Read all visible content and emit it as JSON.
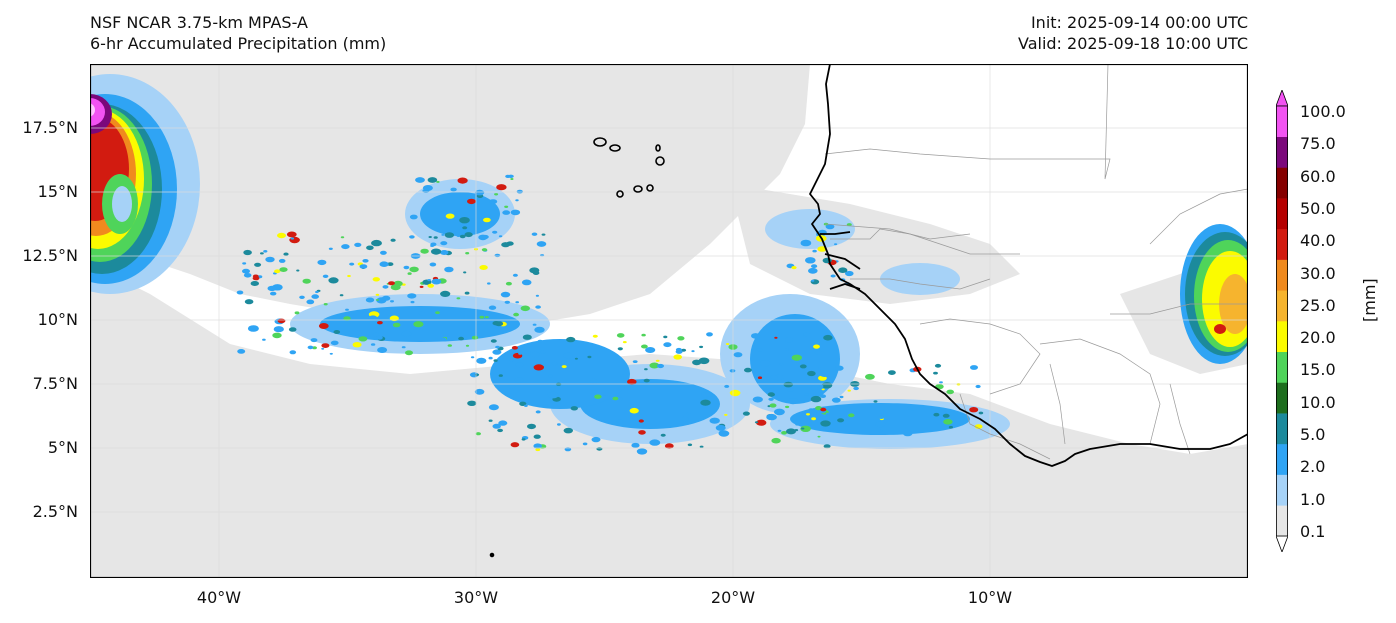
{
  "header": {
    "model": "NSF NCAR 3.75-km MPAS-A",
    "field": "6-hr Accumulated Precipitation (mm)",
    "init": "Init: 2025-09-14 00:00 UTC",
    "valid": "Valid: 2025-09-18 10:00 UTC"
  },
  "axes": {
    "lat_ticks": [
      "17.5°N",
      "15°N",
      "12.5°N",
      "10°N",
      "7.5°N",
      "5°N",
      "2.5°N"
    ],
    "lon_ticks": [
      "40°W",
      "30°W",
      "20°W",
      "10°W"
    ]
  },
  "colorbar": {
    "unit": "[mm]",
    "levels": [
      "0.1",
      "1.0",
      "2.0",
      "5.0",
      "10.0",
      "15.0",
      "20.0",
      "25.0",
      "30.0",
      "40.0",
      "50.0",
      "60.0",
      "75.0",
      "100.0"
    ],
    "colors": [
      "#e6e6e6",
      "#a6d2f7",
      "#2fa4f4",
      "#1c8a9c",
      "#1e6e1e",
      "#4fd45a",
      "#fbfb00",
      "#f6b42e",
      "#f08a1e",
      "#d21b10",
      "#b50000",
      "#850000",
      "#7b087b",
      "#f253f2"
    ]
  },
  "map_style": {
    "light_precip": "#e6e6e6",
    "coastline": "#000000",
    "borders": "#9a9a9a",
    "grid": "#dcdcdc"
  }
}
